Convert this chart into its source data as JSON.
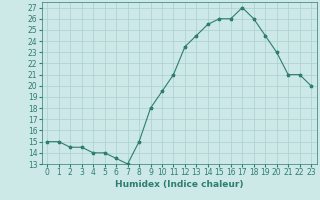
{
  "x": [
    0,
    1,
    2,
    3,
    4,
    5,
    6,
    7,
    8,
    9,
    10,
    11,
    12,
    13,
    14,
    15,
    16,
    17,
    18,
    19,
    20,
    21,
    22,
    23
  ],
  "y": [
    15,
    15,
    14.5,
    14.5,
    14,
    14,
    13.5,
    13,
    15,
    18,
    19.5,
    21,
    23.5,
    24.5,
    25.5,
    26,
    26,
    27,
    26,
    24.5,
    23,
    21,
    21,
    20
  ],
  "xlabel": "Humidex (Indice chaleur)",
  "xlim": [
    -0.5,
    23.5
  ],
  "ylim": [
    13,
    27.5
  ],
  "yticks": [
    13,
    14,
    15,
    16,
    17,
    18,
    19,
    20,
    21,
    22,
    23,
    24,
    25,
    26,
    27
  ],
  "xticks": [
    0,
    1,
    2,
    3,
    4,
    5,
    6,
    7,
    8,
    9,
    10,
    11,
    12,
    13,
    14,
    15,
    16,
    17,
    18,
    19,
    20,
    21,
    22,
    23
  ],
  "line_color": "#2e7d6e",
  "marker": "*",
  "bg_color": "#cce9e7",
  "grid_color": "#aacfcc",
  "tick_fontsize": 5.5,
  "label_fontsize": 6.5
}
